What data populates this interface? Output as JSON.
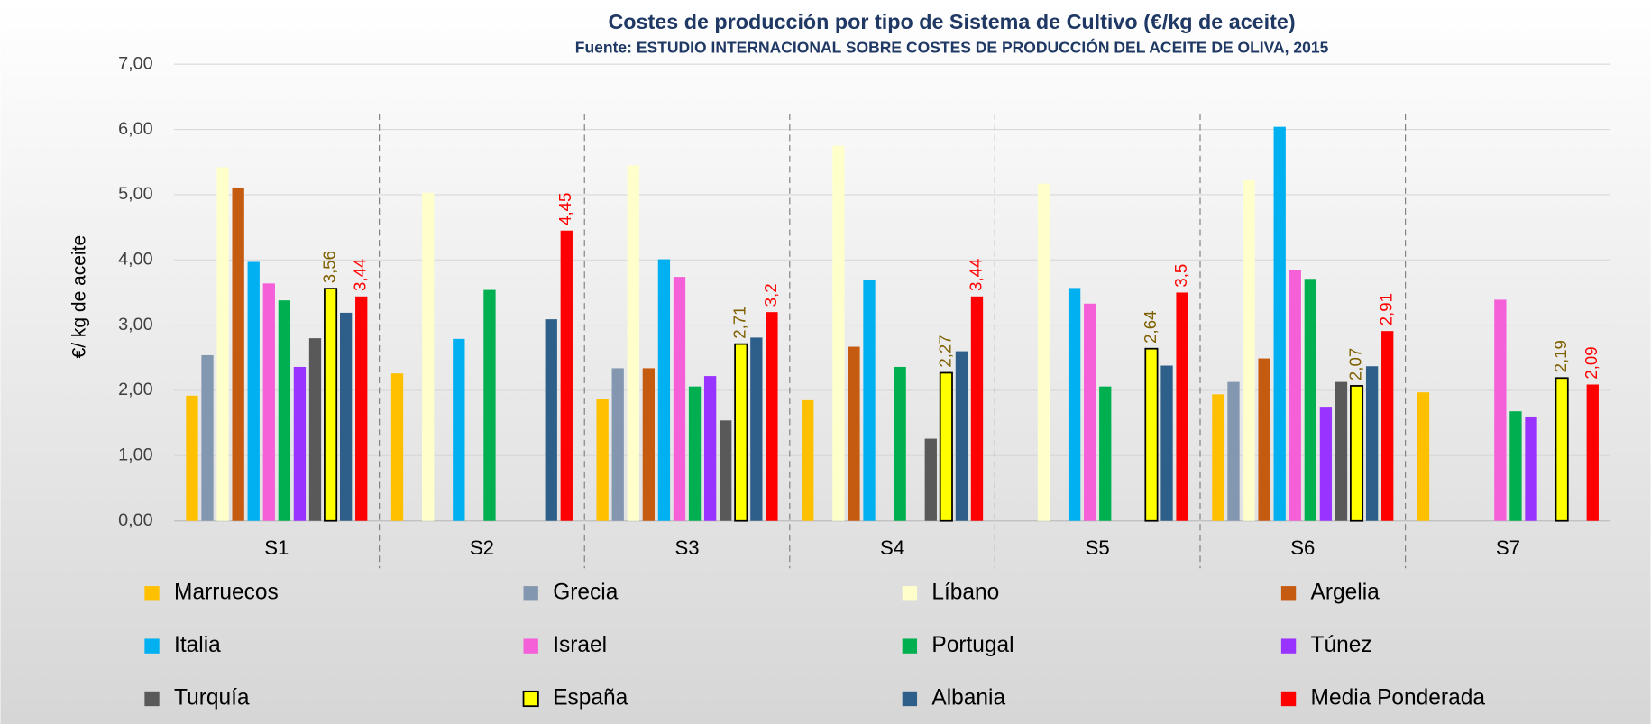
{
  "chart_data": {
    "type": "bar",
    "title": "Costes de producción por tipo de Sistema de Cultivo (€/kg de aceite)",
    "subtitle": "Fuente: ESTUDIO INTERNACIONAL SOBRE COSTES DE PRODUCCIÓN DEL ACEITE DE OLIVA, 2015",
    "y_label": "€/ kg de aceite",
    "categories": [
      "S1",
      "S2",
      "S3",
      "S4",
      "S5",
      "S6",
      "S7"
    ],
    "ylim": [
      0,
      7
    ],
    "yticks": [
      {
        "value": 0,
        "label": "0,00"
      },
      {
        "value": 1,
        "label": "1,00"
      },
      {
        "value": 2,
        "label": "2,00"
      },
      {
        "value": 3,
        "label": "3,00"
      },
      {
        "value": 4,
        "label": "4,00"
      },
      {
        "value": 5,
        "label": "5,00"
      },
      {
        "value": 6,
        "label": "6,00"
      },
      {
        "value": 7,
        "label": "7,00"
      }
    ],
    "grid": true,
    "series": [
      {
        "name": "Marruecos",
        "color": "#FFC000",
        "values": [
          1.92,
          2.26,
          1.87,
          1.85,
          null,
          1.94,
          1.97
        ]
      },
      {
        "name": "Grecia",
        "color": "#8497B0",
        "values": [
          2.54,
          null,
          2.34,
          null,
          null,
          2.13,
          null
        ]
      },
      {
        "name": "Líbano",
        "color": "#FFFFCC",
        "values": [
          5.42,
          5.03,
          5.45,
          5.75,
          5.17,
          5.22,
          null
        ]
      },
      {
        "name": "Argelia",
        "color": "#C55A11",
        "values": [
          5.11,
          null,
          2.34,
          2.67,
          null,
          2.49,
          null
        ]
      },
      {
        "name": "Italia",
        "color": "#00B0F0",
        "values": [
          3.97,
          2.79,
          4.01,
          3.7,
          3.57,
          6.04,
          null
        ]
      },
      {
        "name": "Israel",
        "color": "#F55FD8",
        "values": [
          3.64,
          null,
          3.74,
          null,
          3.33,
          3.84,
          3.39
        ]
      },
      {
        "name": "Portugal",
        "color": "#00B050",
        "values": [
          3.38,
          3.54,
          2.06,
          2.36,
          2.06,
          3.71,
          1.68
        ]
      },
      {
        "name": "Túnez",
        "color": "#9933FF",
        "values": [
          2.36,
          null,
          2.22,
          null,
          null,
          1.75,
          1.6
        ]
      },
      {
        "name": "Turquía",
        "color": "#595959",
        "values": [
          2.8,
          null,
          1.54,
          1.26,
          null,
          2.13,
          null
        ]
      },
      {
        "name": "España",
        "color": "#FFFF00",
        "edgecolor": "#000000",
        "label_color": "#7F6000",
        "values": [
          3.56,
          null,
          2.71,
          2.27,
          2.64,
          2.07,
          2.19
        ],
        "value_labels": [
          "3,56",
          null,
          "2,71",
          "2,27",
          "2,64",
          "2,07",
          "2,19"
        ]
      },
      {
        "name": "Albania",
        "color": "#2E5F8A",
        "values": [
          3.19,
          3.09,
          2.81,
          2.6,
          2.38,
          2.37,
          null
        ]
      },
      {
        "name": "Media Ponderada",
        "color": "#FF0000",
        "label_color": "#FF0000",
        "values": [
          3.44,
          4.45,
          3.2,
          3.44,
          3.5,
          2.91,
          2.09
        ],
        "value_labels": [
          "3,44",
          "4,45",
          "3,2",
          "3,44",
          "3,5",
          "2,91",
          "2,09"
        ]
      }
    ]
  }
}
